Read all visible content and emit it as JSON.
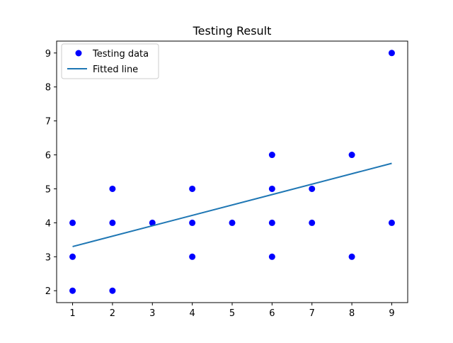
{
  "chart_data": {
    "type": "scatter",
    "title": "Testing Result",
    "xlabel": "",
    "ylabel": "",
    "xlim": [
      0.6,
      9.4
    ],
    "ylim": [
      1.65,
      9.35
    ],
    "xticks": [
      1,
      2,
      3,
      4,
      5,
      6,
      7,
      8,
      9
    ],
    "yticks": [
      2,
      3,
      4,
      5,
      6,
      7,
      8,
      9
    ],
    "grid": false,
    "legend_position": "top-left",
    "series": [
      {
        "name": "Testing data",
        "type": "scatter",
        "color": "#0000ff",
        "points": [
          [
            1,
            4
          ],
          [
            1,
            3
          ],
          [
            1,
            2
          ],
          [
            2,
            5
          ],
          [
            2,
            4
          ],
          [
            2,
            2
          ],
          [
            3,
            4
          ],
          [
            4,
            5
          ],
          [
            4,
            4
          ],
          [
            4,
            3
          ],
          [
            5,
            4
          ],
          [
            6,
            6
          ],
          [
            6,
            5
          ],
          [
            6,
            4
          ],
          [
            6,
            3
          ],
          [
            7,
            5
          ],
          [
            7,
            4
          ],
          [
            8,
            6
          ],
          [
            8,
            3
          ],
          [
            9,
            9
          ],
          [
            9,
            4
          ]
        ]
      },
      {
        "name": "Fitted line",
        "type": "line",
        "color": "#1f77b4",
        "points": [
          [
            1,
            3.3
          ],
          [
            9,
            5.75
          ]
        ]
      }
    ]
  }
}
